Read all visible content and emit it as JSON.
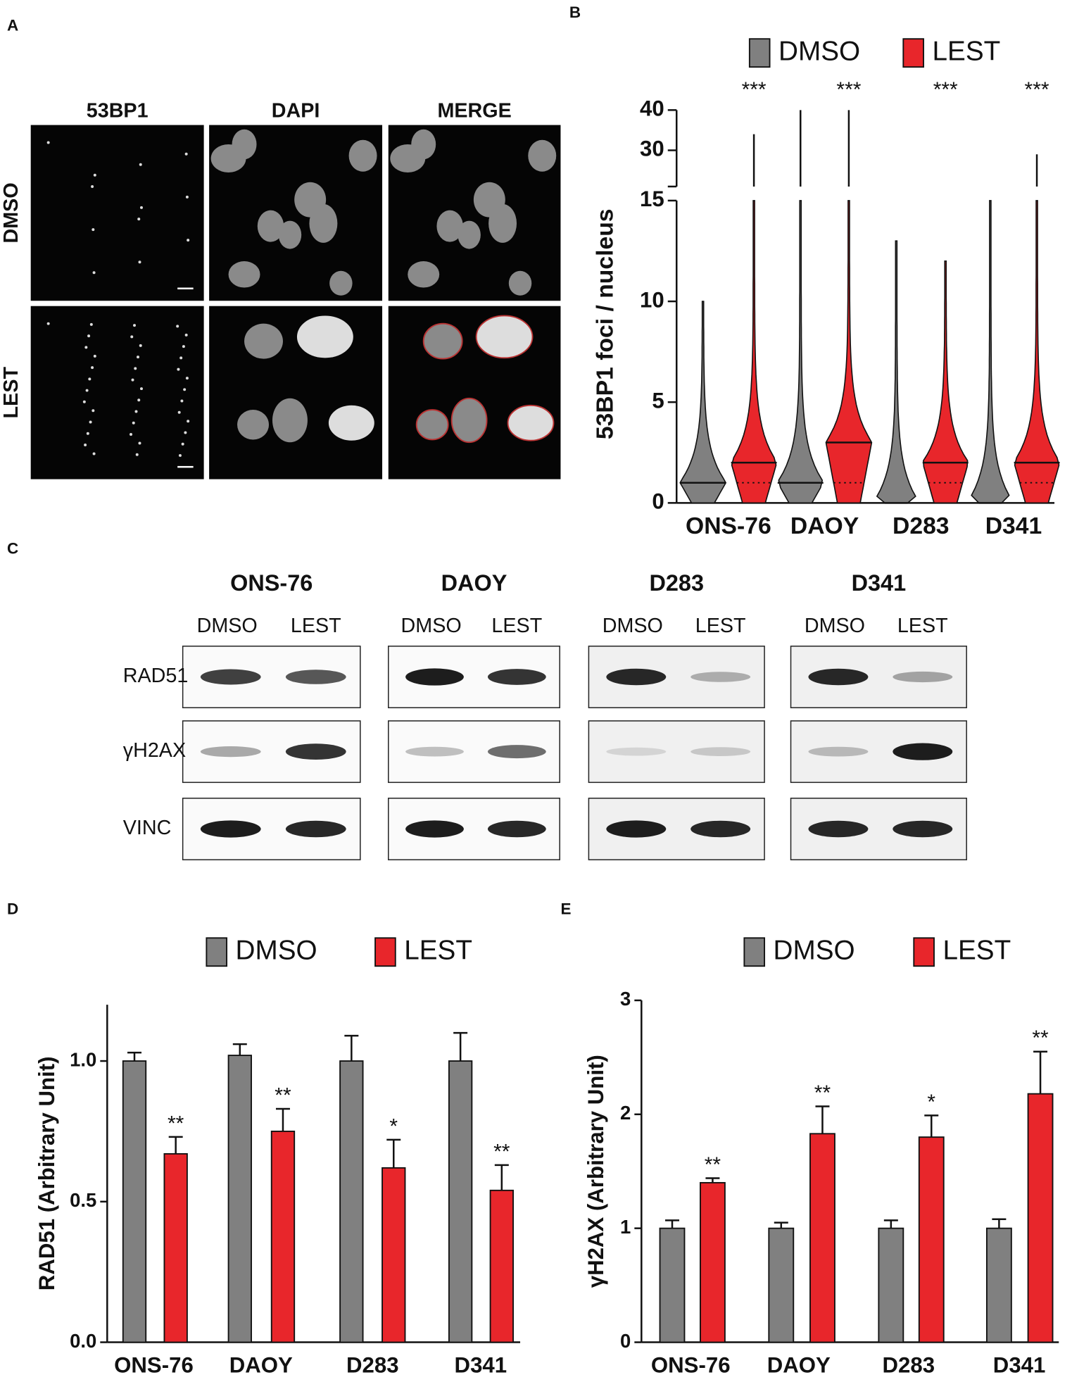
{
  "panels": {
    "a": "A",
    "b": "B",
    "c": "C",
    "d": "D",
    "e": "E"
  },
  "microscopy": {
    "columns": [
      "53BP1",
      "DAPI",
      "MERGE"
    ],
    "rows": [
      "DMSO",
      "LEST"
    ]
  },
  "western": {
    "cell_lines": [
      "ONS-76",
      "DAOY",
      "D283",
      "D341"
    ],
    "conditions": [
      "DMSO",
      "LEST"
    ],
    "proteins": [
      "RAD51",
      "γH2AX",
      "VINC"
    ]
  },
  "chart_data": [
    {
      "type": "violin",
      "y_label": "53BP1 foci / nucleus",
      "categories": [
        "ONS-76",
        "DAOY",
        "D283",
        "D341"
      ],
      "ylim": [
        0,
        15
      ],
      "yticks": [
        0,
        5,
        10,
        15
      ],
      "break_ylim": [
        21,
        40
      ],
      "break_yticks": [
        30,
        40
      ],
      "annotations": [
        "***",
        "***",
        "***",
        "***"
      ],
      "series": [
        {
          "name": "DMSO",
          "color": "#808080",
          "median": [
            1,
            1,
            0,
            0
          ],
          "max": [
            10,
            40,
            13,
            15
          ]
        },
        {
          "name": "LEST",
          "color": "#e8262b",
          "median": [
            2,
            3,
            2,
            2
          ],
          "q1": [
            1,
            1,
            1,
            1
          ],
          "max": [
            34,
            40,
            12,
            29
          ]
        }
      ]
    },
    {
      "type": "bar",
      "y_label": "RAD51 (Arbitrary Unit)",
      "categories": [
        "ONS-76",
        "DAOY",
        "D283",
        "D341"
      ],
      "ylim": [
        0,
        1.2
      ],
      "yticks": [
        {
          "value": 0,
          "label": "0.0"
        },
        0.5,
        {
          "value": 1,
          "label": "1.0"
        }
      ],
      "annotations": [
        "**",
        "**",
        "*",
        "**"
      ],
      "series": [
        {
          "name": "DMSO",
          "color": "#808080",
          "values": [
            1.0,
            1.02,
            1.0,
            1.0
          ],
          "errors": [
            0.03,
            0.04,
            0.09,
            0.1
          ]
        },
        {
          "name": "LEST",
          "color": "#e8262b",
          "values": [
            0.67,
            0.75,
            0.62,
            0.54
          ],
          "errors": [
            0.06,
            0.08,
            0.1,
            0.09
          ]
        }
      ]
    },
    {
      "type": "bar",
      "y_label": "γH2AX (Arbitrary Unit)",
      "categories": [
        "ONS-76",
        "DAOY",
        "D283",
        "D341"
      ],
      "ylim": [
        0,
        3
      ],
      "yticks": [
        0,
        1,
        2,
        3
      ],
      "annotations": [
        "**",
        "**",
        "*",
        "**"
      ],
      "series": [
        {
          "name": "DMSO",
          "color": "#808080",
          "values": [
            1.0,
            1.0,
            1.0,
            1.0
          ],
          "errors": [
            0.07,
            0.05,
            0.07,
            0.08
          ]
        },
        {
          "name": "LEST",
          "color": "#e8262b",
          "values": [
            1.4,
            1.83,
            1.8,
            2.18
          ],
          "errors": [
            0.04,
            0.24,
            0.19,
            0.37
          ]
        }
      ]
    }
  ]
}
